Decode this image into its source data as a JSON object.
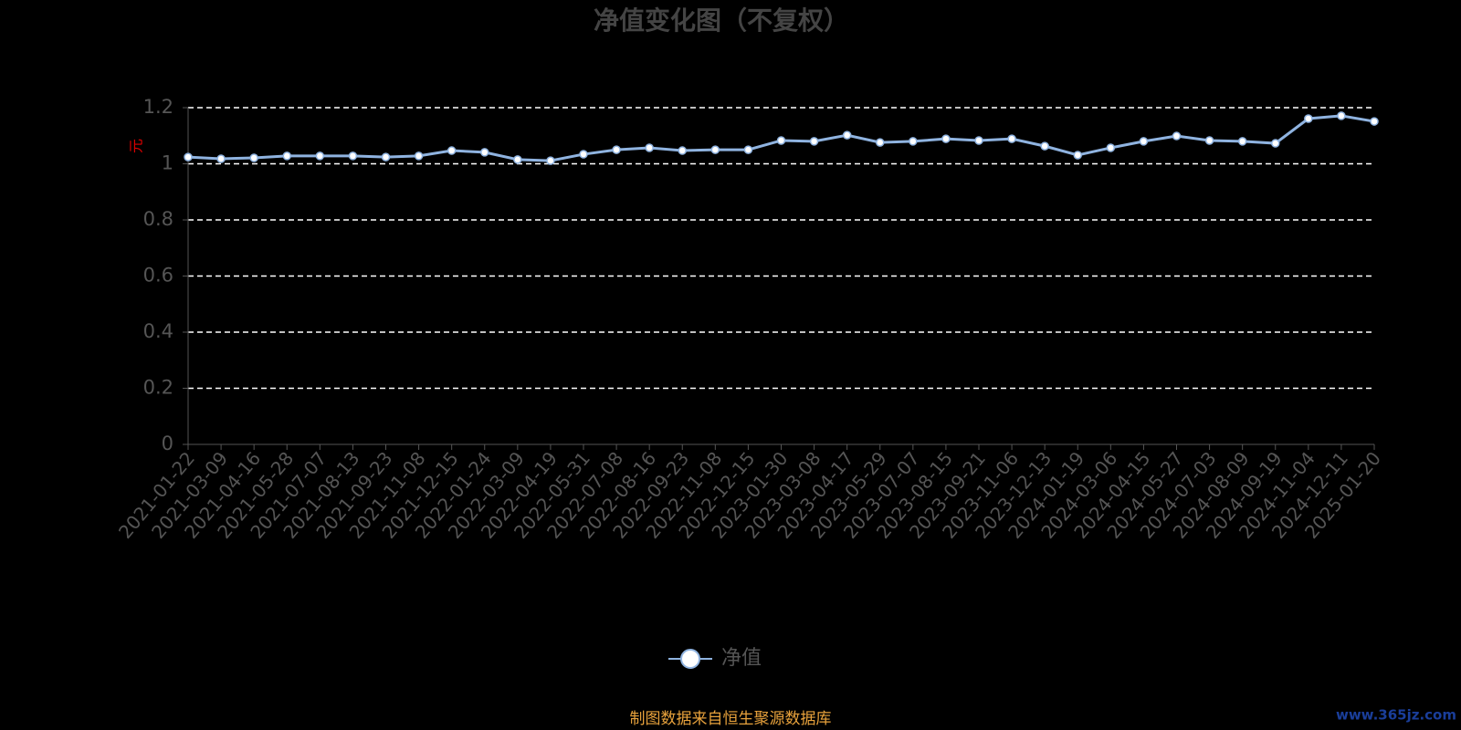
{
  "chart_data": {
    "type": "line",
    "title": "净值变化图（不复权）",
    "y_label": "元",
    "categories": [
      "2021-01-22",
      "2021-03-09",
      "2021-04-16",
      "2021-05-28",
      "2021-07-07",
      "2021-08-13",
      "2021-09-23",
      "2021-11-08",
      "2021-12-15",
      "2022-01-24",
      "2022-03-09",
      "2022-04-19",
      "2022-05-31",
      "2022-07-08",
      "2022-08-16",
      "2022-09-23",
      "2022-11-08",
      "2022-12-15",
      "2023-01-30",
      "2023-03-08",
      "2023-04-17",
      "2023-05-29",
      "2023-07-07",
      "2023-08-15",
      "2023-09-21",
      "2023-11-06",
      "2023-12-13",
      "2024-01-19",
      "2024-03-06",
      "2024-04-15",
      "2024-05-27",
      "2024-07-03",
      "2024-08-09",
      "2024-09-19",
      "2024-11-04",
      "2024-12-11",
      "2025-01-20"
    ],
    "series": [
      {
        "name": "净值",
        "color": "#8fb3e0",
        "values": [
          1.024,
          1.018,
          1.021,
          1.028,
          1.028,
          1.028,
          1.024,
          1.028,
          1.047,
          1.041,
          1.015,
          1.011,
          1.034,
          1.05,
          1.057,
          1.047,
          1.05,
          1.05,
          1.083,
          1.08,
          1.102,
          1.076,
          1.08,
          1.089,
          1.083,
          1.089,
          1.063,
          1.031,
          1.057,
          1.08,
          1.099,
          1.083,
          1.08,
          1.073,
          1.161,
          1.171,
          1.151
        ]
      }
    ],
    "ylim": [
      0,
      1.2
    ],
    "yticks": [
      0,
      0.2,
      0.4,
      0.6,
      0.8,
      1,
      1.2
    ],
    "grid": true,
    "source": "制图数据来自恒生聚源数据库",
    "watermark": "www.365jz.com"
  }
}
